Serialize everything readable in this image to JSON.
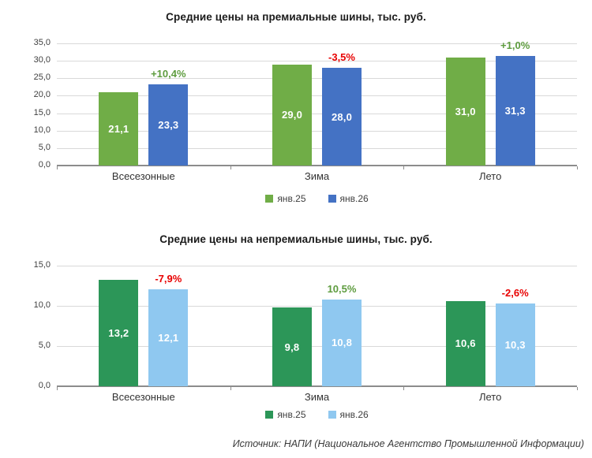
{
  "source_note": "Источник: НАПИ (Национальное Агентство Промышленной Информации)",
  "chart_data": [
    {
      "type": "bar",
      "title": "Средние цены на премиальные шины, тыс. руб.",
      "categories": [
        "Всесезонные",
        "Зима",
        "Лето"
      ],
      "series": [
        {
          "name": "янв.25",
          "color": "#70AD47",
          "values": [
            21.1,
            29.0,
            31.0
          ],
          "value_labels": [
            "21,1",
            "29,0",
            "31,0"
          ]
        },
        {
          "name": "янв.26",
          "color": "#4472C4",
          "values": [
            23.3,
            28.0,
            31.3
          ],
          "value_labels": [
            "23,3",
            "28,0",
            "31,3"
          ]
        }
      ],
      "change_labels": [
        {
          "text": "+10,4%",
          "color": "#5E9C3F"
        },
        {
          "text": "-3,5%",
          "color": "#E80000"
        },
        {
          "text": "+1,0%",
          "color": "#5E9C3F"
        }
      ],
      "ylim": [
        0,
        35
      ],
      "ytick_step": 5,
      "ytick_labels": [
        "0,0",
        "5,0",
        "10,0",
        "15,0",
        "20,0",
        "25,0",
        "30,0",
        "35,0"
      ],
      "grid": true,
      "legend_position": "bottom"
    },
    {
      "type": "bar",
      "title": "Средние цены на непремиальные шины,  тыс. руб.",
      "categories": [
        "Всесезонные",
        "Зима",
        "Лето"
      ],
      "series": [
        {
          "name": "янв.25",
          "color": "#2C9658",
          "values": [
            13.2,
            9.8,
            10.6
          ],
          "value_labels": [
            "13,2",
            "9,8",
            "10,6"
          ]
        },
        {
          "name": "янв.26",
          "color": "#8FC8F0",
          "values": [
            12.1,
            10.8,
            10.3
          ],
          "value_labels": [
            "12,1",
            "10,8",
            "10,3"
          ]
        }
      ],
      "change_labels": [
        {
          "text": "-7,9%",
          "color": "#E80000"
        },
        {
          "text": "10,5%",
          "color": "#5E9C3F"
        },
        {
          "text": "-2,6%",
          "color": "#E80000"
        }
      ],
      "ylim": [
        0,
        15
      ],
      "ytick_step": 5,
      "ytick_labels": [
        "0,0",
        "5,0",
        "10,0",
        "15,0"
      ],
      "grid": true,
      "legend_position": "bottom"
    }
  ]
}
